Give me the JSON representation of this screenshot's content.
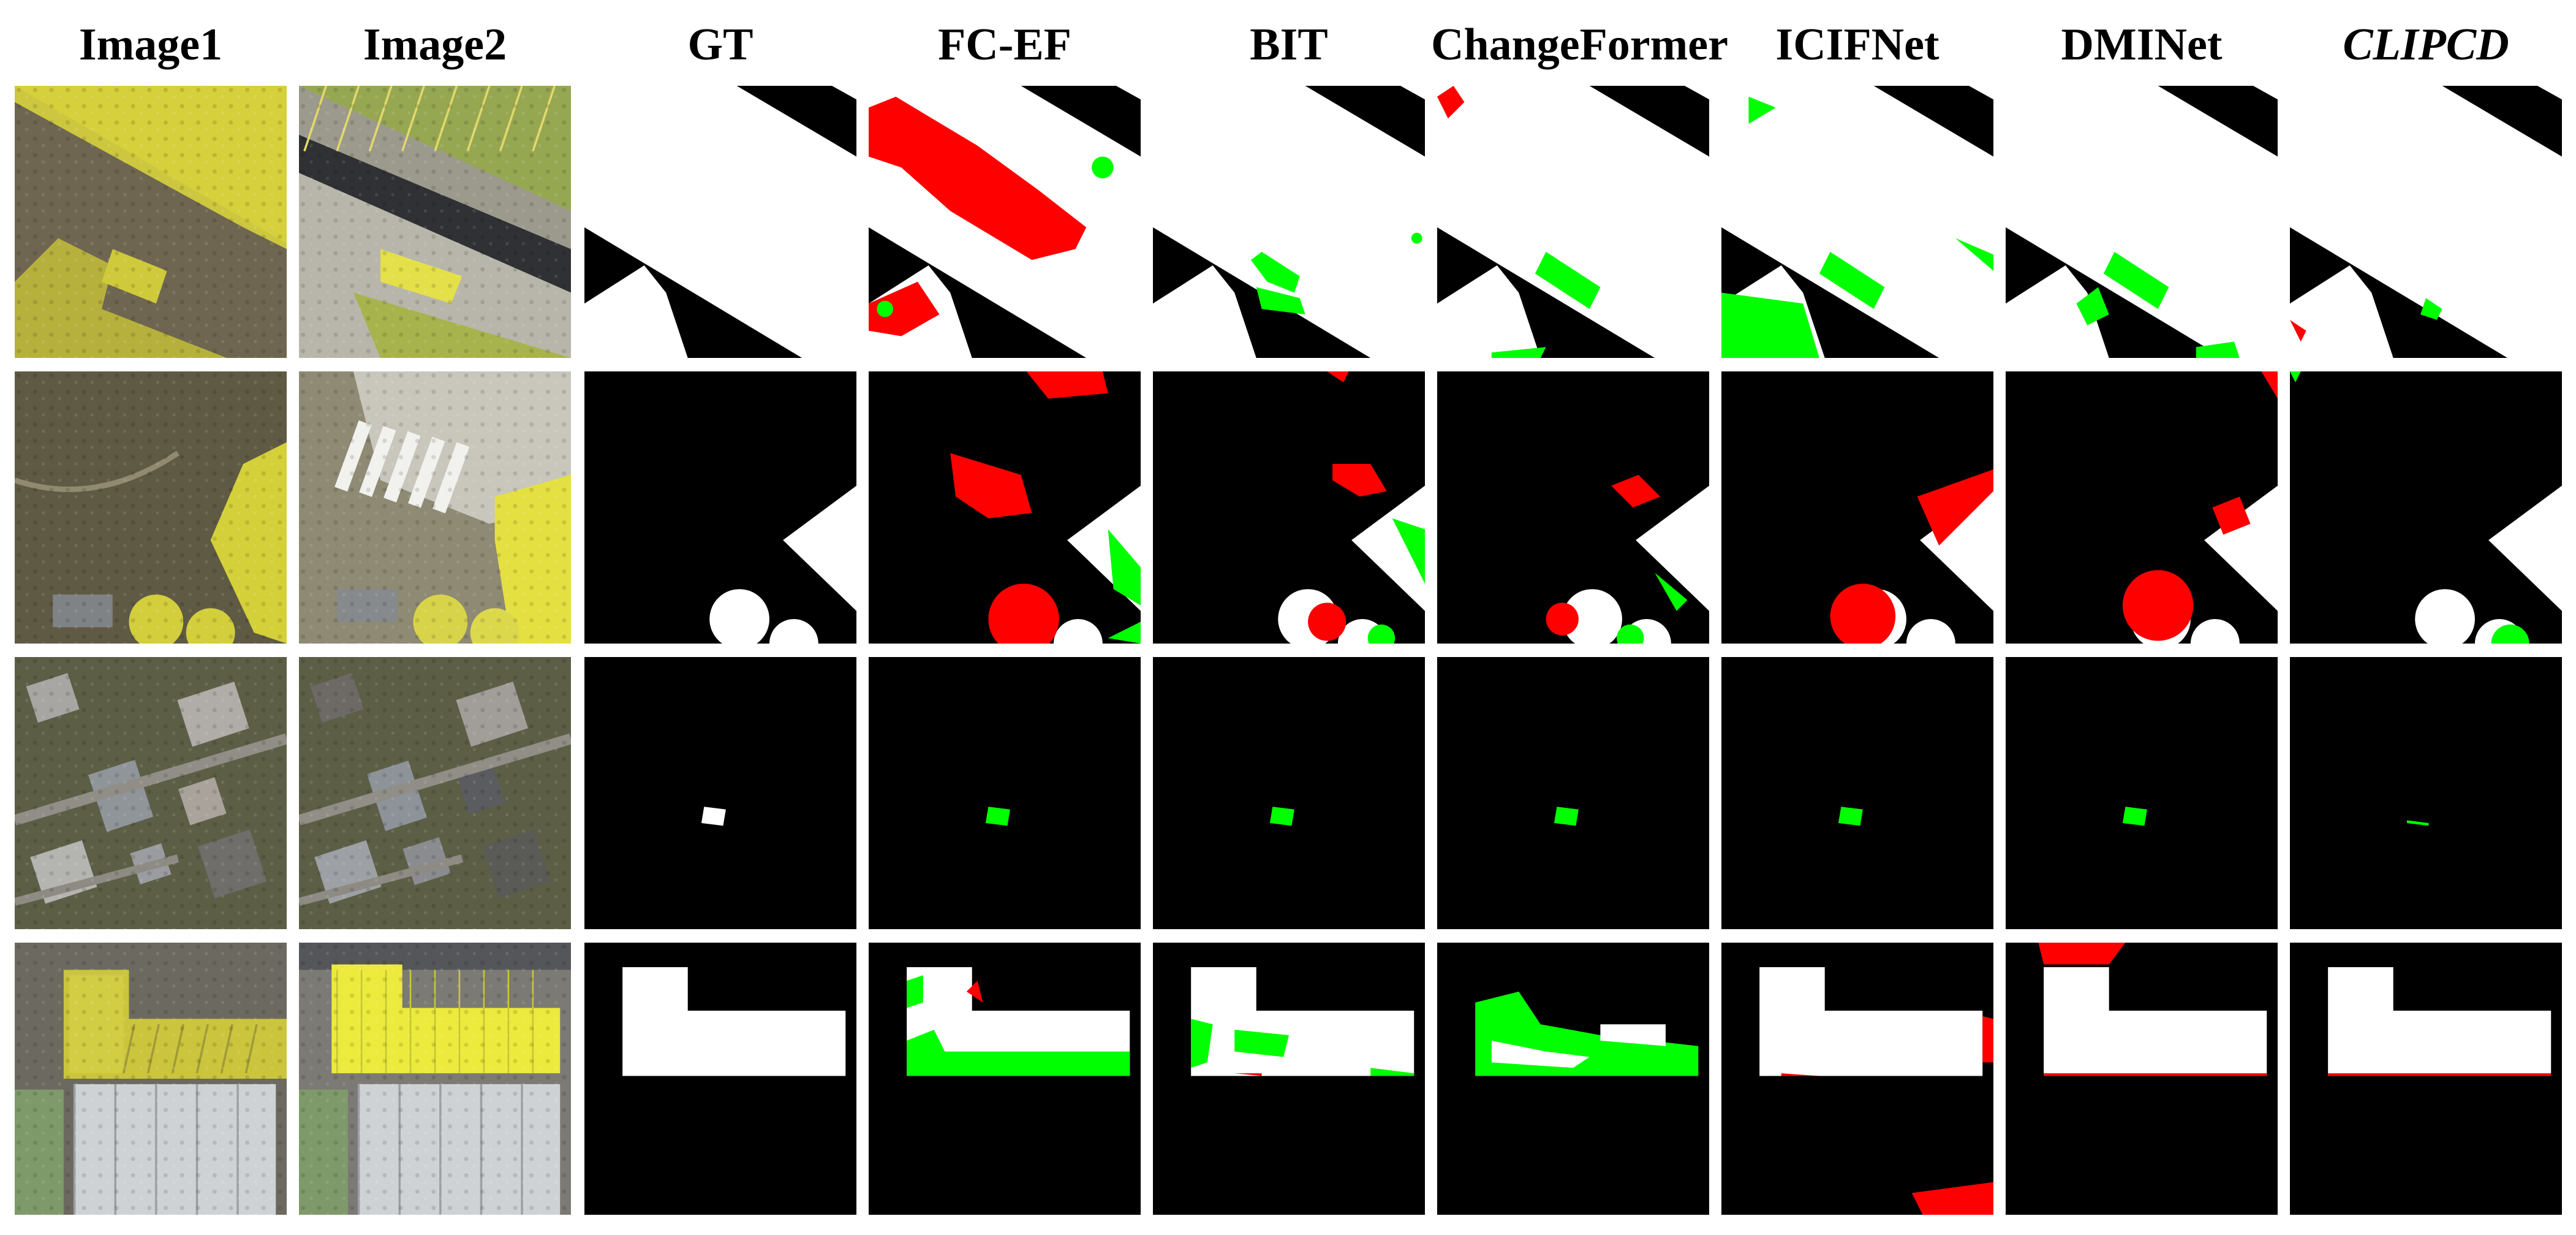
{
  "figure": {
    "columns": [
      {
        "key": "image1",
        "label": "Image1",
        "kind": "photo_t1"
      },
      {
        "key": "image2",
        "label": "Image2",
        "kind": "photo_t2"
      },
      {
        "key": "gt",
        "label": "GT",
        "kind": "mask"
      },
      {
        "key": "fcef",
        "label": "FC-EF",
        "kind": "mask"
      },
      {
        "key": "bit",
        "label": "BIT",
        "kind": "mask"
      },
      {
        "key": "changeformer",
        "label": "ChangeFormer",
        "kind": "mask"
      },
      {
        "key": "icifnet",
        "label": "ICIFNet",
        "kind": "mask"
      },
      {
        "key": "dminet",
        "label": "DMINet",
        "kind": "mask"
      },
      {
        "key": "clipcd",
        "label": "CLIPCD",
        "kind": "mask",
        "italic": true
      }
    ],
    "rows": [
      {
        "scene": "diagonal-band"
      },
      {
        "scene": "triangle-circles"
      },
      {
        "scene": "small-building"
      },
      {
        "scene": "l-shaped-building"
      }
    ],
    "colors": {
      "unchanged": "#000000",
      "changed_correct": "#ffffff",
      "false_positive": "#ff0000",
      "false_negative": "#00ff00",
      "overlay_highlight": "#f2ef3a"
    }
  }
}
